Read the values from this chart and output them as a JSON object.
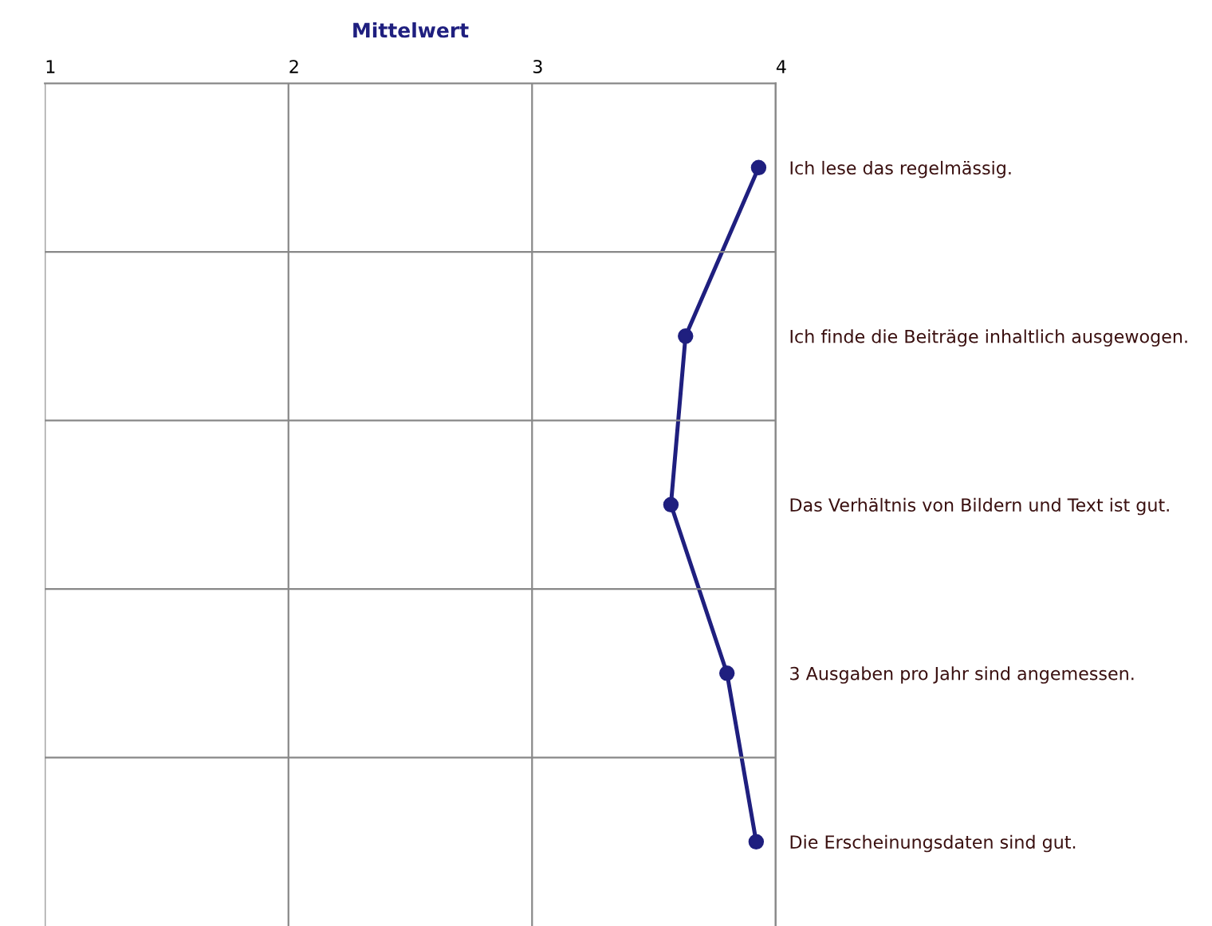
{
  "chart_data": {
    "type": "line",
    "orientation": "horizontal",
    "xlabel": "Mittelwert",
    "categories": [
      "Ich lese das regelmässig.",
      "Ich finde die Beiträge inhaltlich ausgewogen.",
      "Das Verhältnis von Bildern und Text ist gut.",
      "3 Ausgaben pro Jahr sind angemessen.",
      "Die Erscheinungsdaten sind gut."
    ],
    "series": [
      {
        "color": "#1f1f7f",
        "values": [
          3.93,
          3.63,
          3.57,
          3.8,
          3.92
        ]
      }
    ],
    "xlim": [
      1,
      4
    ],
    "xticks": [
      1,
      2,
      3,
      4
    ],
    "grid": true,
    "marker": "circle",
    "line_style": "solid"
  }
}
